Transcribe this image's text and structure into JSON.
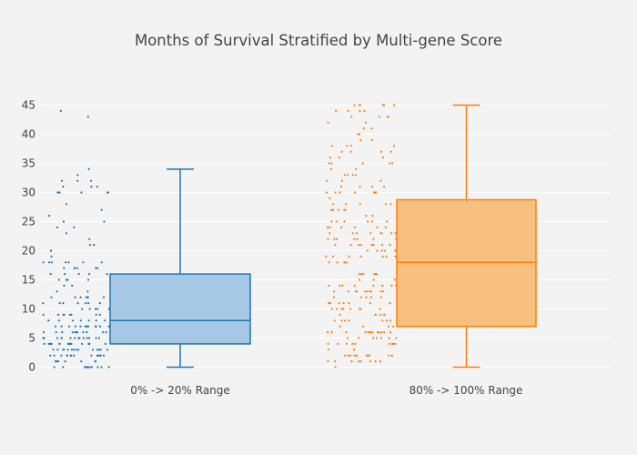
{
  "chart_data": {
    "type": "box",
    "title": "Months of Survival Stratified by Multi-gene Score",
    "xlabel": "",
    "ylabel": "",
    "ylim": [
      0,
      47
    ],
    "yticks": [
      0,
      5,
      10,
      15,
      20,
      25,
      30,
      35,
      40,
      45
    ],
    "grid": true,
    "legend": "none",
    "boxpoints": "all",
    "categories": [
      "0% -> 20% Range",
      "80% -> 100% Range"
    ],
    "series": [
      {
        "name": "0% -> 20% Range",
        "color": "#1f77b4",
        "fill": "#a6c8e4",
        "stats": {
          "min": 0,
          "q1": 4,
          "median": 8,
          "q3": 16,
          "max": 34
        },
        "points": [
          0,
          0,
          0,
          0,
          0,
          0,
          0,
          0,
          0,
          0,
          0,
          1,
          1,
          1,
          1,
          1,
          1,
          1,
          2,
          2,
          2,
          2,
          2,
          2,
          2,
          2,
          2,
          2,
          2,
          2,
          2,
          2,
          3,
          3,
          3,
          3,
          3,
          3,
          3,
          3,
          3,
          3,
          3,
          3,
          3,
          3,
          4,
          4,
          4,
          4,
          4,
          4,
          4,
          4,
          4,
          4,
          4,
          4,
          4,
          4,
          4,
          4,
          5,
          5,
          5,
          5,
          5,
          5,
          5,
          5,
          5,
          5,
          5,
          5,
          5,
          5,
          6,
          6,
          6,
          6,
          6,
          6,
          6,
          6,
          6,
          6,
          6,
          7,
          7,
          7,
          7,
          7,
          7,
          7,
          7,
          7,
          7,
          7,
          7,
          7,
          8,
          8,
          8,
          8,
          8,
          8,
          8,
          8,
          9,
          9,
          9,
          9,
          9,
          9,
          9,
          9,
          10,
          10,
          10,
          10,
          10,
          11,
          11,
          11,
          11,
          11,
          11,
          11,
          12,
          12,
          12,
          12,
          12,
          12,
          12,
          13,
          13,
          14,
          14,
          15,
          15,
          15,
          15,
          16,
          16,
          16,
          16,
          16,
          17,
          17,
          17,
          17,
          17,
          17,
          18,
          18,
          18,
          18,
          18,
          18,
          18,
          19,
          20,
          20,
          21,
          21,
          22,
          23,
          24,
          24,
          25,
          25,
          26,
          27,
          28,
          30,
          30,
          30,
          30,
          30,
          30,
          31,
          31,
          31,
          32,
          32,
          32,
          33,
          34,
          43,
          44
        ]
      },
      {
        "name": "80% -> 100% Range",
        "color": "#ff7f0e",
        "fill": "#f7c07e",
        "stats": {
          "min": 0,
          "q1": 7,
          "median": 18,
          "q3": 28.75,
          "max": 45
        },
        "points": [
          0,
          1,
          1,
          1,
          1,
          1,
          1,
          1,
          1,
          2,
          2,
          2,
          2,
          2,
          2,
          2,
          2,
          2,
          2,
          2,
          2,
          3,
          3,
          3,
          4,
          4,
          4,
          4,
          4,
          4,
          4,
          4,
          4,
          5,
          5,
          5,
          5,
          5,
          5,
          5,
          6,
          6,
          6,
          6,
          6,
          6,
          6,
          6,
          6,
          6,
          6,
          6,
          7,
          7,
          7,
          7,
          8,
          8,
          8,
          8,
          8,
          8,
          8,
          9,
          9,
          9,
          9,
          9,
          9,
          10,
          10,
          10,
          10,
          10,
          10,
          10,
          10,
          11,
          11,
          11,
          11,
          11,
          11,
          11,
          12,
          12,
          12,
          12,
          12,
          13,
          13,
          13,
          13,
          13,
          13,
          13,
          13,
          13,
          13,
          14,
          14,
          14,
          14,
          14,
          14,
          14,
          14,
          14,
          15,
          15,
          15,
          16,
          16,
          16,
          16,
          16,
          16,
          18,
          18,
          18,
          18,
          19,
          19,
          19,
          19,
          19,
          19,
          19,
          20,
          20,
          20,
          20,
          20,
          20,
          21,
          21,
          21,
          21,
          21,
          21,
          21,
          21,
          21,
          22,
          22,
          22,
          22,
          22,
          22,
          22,
          23,
          23,
          23,
          23,
          23,
          23,
          23,
          23,
          24,
          24,
          24,
          24,
          24,
          24,
          25,
          25,
          25,
          25,
          25,
          25,
          26,
          26,
          27,
          27,
          27,
          27,
          27,
          27,
          28,
          28,
          28,
          28,
          28,
          29,
          30,
          30,
          30,
          30,
          30,
          30,
          30,
          31,
          31,
          31,
          31,
          32,
          32,
          32,
          33,
          33,
          33,
          33,
          34,
          34,
          35,
          35,
          35,
          35,
          35,
          36,
          36,
          36,
          37,
          37,
          37,
          37,
          38,
          38,
          38,
          38,
          39,
          39,
          40,
          40,
          41,
          41,
          42,
          42,
          43,
          43,
          43,
          43,
          44,
          44,
          44,
          44,
          45,
          45,
          45,
          45,
          45,
          45
        ]
      }
    ]
  }
}
